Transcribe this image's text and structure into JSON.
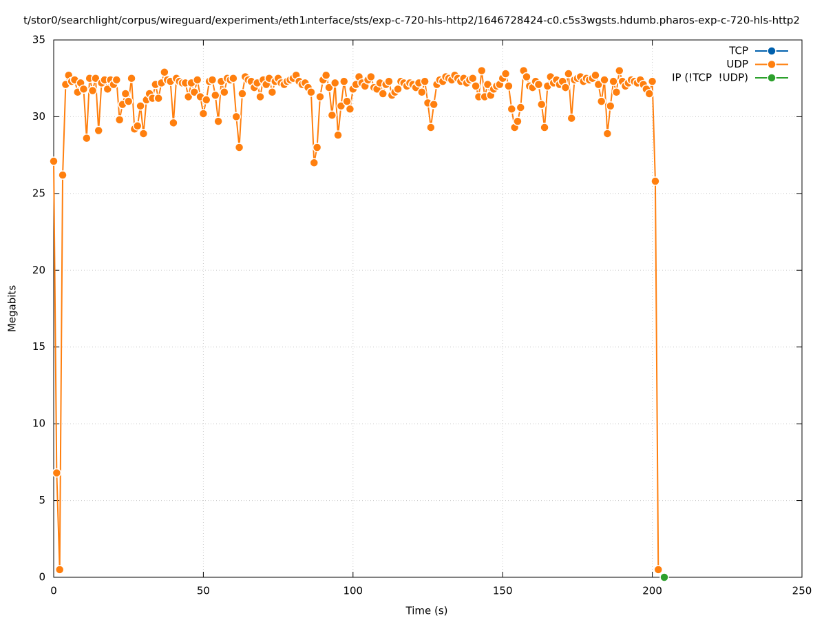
{
  "chart_data": {
    "type": "line",
    "title": "t/stor0/searchlight/corpus/wireguard/experiment₃/eth1ᵢnterface/sts/exp-c-720-hls-http2/1646728424-c0.c5s3wgsts.hdumb.pharos-exp-c-720-hls-http2",
    "x_label": "Time (s)",
    "y_label": "Megabits",
    "xlim": [
      0,
      250
    ],
    "xticks": [
      0,
      50,
      100,
      150,
      200,
      250
    ],
    "ylim": [
      0,
      35
    ],
    "yticks": [
      0,
      5,
      10,
      15,
      20,
      25,
      30,
      35
    ],
    "grid": true,
    "legend": "top-right",
    "x": [
      0,
      1,
      2,
      3,
      4,
      5,
      6,
      7,
      8,
      9,
      10,
      11,
      12,
      13,
      14,
      15,
      16,
      17,
      18,
      19,
      20,
      21,
      22,
      23,
      24,
      25,
      26,
      27,
      28,
      29,
      30,
      31,
      32,
      33,
      34,
      35,
      36,
      37,
      38,
      39,
      40,
      41,
      42,
      43,
      44,
      45,
      46,
      47,
      48,
      49,
      50,
      51,
      52,
      53,
      54,
      55,
      56,
      57,
      58,
      59,
      60,
      61,
      62,
      63,
      64,
      65,
      66,
      67,
      68,
      69,
      70,
      71,
      72,
      73,
      74,
      75,
      76,
      77,
      78,
      79,
      80,
      81,
      82,
      83,
      84,
      85,
      86,
      87,
      88,
      89,
      90,
      91,
      92,
      93,
      94,
      95,
      96,
      97,
      98,
      99,
      100,
      101,
      102,
      103,
      104,
      105,
      106,
      107,
      108,
      109,
      110,
      111,
      112,
      113,
      114,
      115,
      116,
      117,
      118,
      119,
      120,
      121,
      122,
      123,
      124,
      125,
      126,
      127,
      128,
      129,
      130,
      131,
      132,
      133,
      134,
      135,
      136,
      137,
      138,
      139,
      140,
      141,
      142,
      143,
      144,
      145,
      146,
      147,
      148,
      149,
      150,
      151,
      152,
      153,
      154,
      155,
      156,
      157,
      158,
      159,
      160,
      161,
      162,
      163,
      164,
      165,
      166,
      167,
      168,
      169,
      170,
      171,
      172,
      173,
      174,
      175,
      176,
      177,
      178,
      179,
      180,
      181,
      182,
      183,
      184,
      185,
      186,
      187,
      188,
      189,
      190,
      191,
      192,
      193,
      194,
      195,
      196,
      197,
      198,
      199,
      200,
      201,
      202,
      203,
      204
    ],
    "series": [
      {
        "name": "TCP",
        "color": "#0060ad",
        "values": [
          null,
          null,
          null,
          null,
          null,
          null,
          null,
          null,
          null,
          null,
          null,
          null,
          null,
          null,
          null,
          null,
          null,
          null,
          null,
          null,
          null,
          null,
          null,
          null,
          null,
          null,
          null,
          null,
          null,
          null,
          null,
          null,
          null,
          null,
          null,
          null,
          null,
          null,
          null,
          null,
          null,
          null,
          null,
          null,
          null,
          null,
          null,
          null,
          null,
          null,
          null,
          null,
          null,
          null,
          null,
          null,
          null,
          null,
          null,
          null,
          null,
          null,
          null,
          null,
          null,
          null,
          null,
          null,
          null,
          null,
          null,
          null,
          null,
          null,
          null,
          null,
          null,
          null,
          null,
          null,
          null,
          null,
          null,
          null,
          null,
          null,
          null,
          null,
          null,
          null,
          null,
          null,
          null,
          null,
          null,
          null,
          null,
          null,
          null,
          null,
          null,
          null,
          null,
          null,
          null,
          null,
          null,
          null,
          null,
          null,
          null,
          null,
          null,
          null,
          null,
          null,
          null,
          null,
          null,
          null,
          null,
          null,
          null,
          null,
          null,
          null,
          null,
          null,
          null,
          null,
          null,
          null,
          null,
          null,
          null,
          null,
          null,
          null,
          null,
          null,
          null,
          null,
          null,
          null,
          null,
          null,
          null,
          null,
          null,
          null,
          null,
          null,
          null,
          null,
          null,
          null,
          null,
          null,
          null,
          null,
          null,
          null,
          null,
          null,
          null,
          null,
          null,
          null,
          null,
          null,
          null,
          null,
          null,
          null,
          null,
          null,
          null,
          null,
          null,
          null,
          null,
          null,
          null,
          null,
          null,
          null,
          null,
          null,
          null,
          null,
          null,
          null,
          null,
          null,
          null,
          null,
          null,
          null,
          null,
          null,
          null,
          null,
          null,
          null,
          null
        ]
      },
      {
        "name": "UDP",
        "color": "#ff7f0e",
        "values": [
          27.1,
          6.8,
          0.5,
          26.2,
          32.1,
          32.7,
          32.3,
          32.4,
          31.6,
          32.2,
          31.8,
          28.6,
          32.5,
          31.7,
          32.5,
          29.1,
          32.2,
          32.4,
          31.8,
          32.4,
          32.1,
          32.4,
          29.8,
          30.8,
          31.5,
          31.0,
          32.5,
          29.2,
          29.4,
          30.7,
          28.9,
          31.1,
          31.5,
          31.2,
          32.1,
          31.2,
          32.2,
          32.9,
          32.4,
          32.3,
          29.6,
          32.5,
          32.3,
          32.2,
          32.2,
          31.3,
          32.2,
          31.6,
          32.4,
          31.3,
          30.2,
          31.1,
          32.3,
          32.4,
          31.4,
          29.7,
          32.3,
          31.6,
          32.5,
          32.4,
          32.5,
          30.0,
          28.0,
          31.5,
          32.6,
          32.4,
          32.3,
          31.9,
          32.2,
          31.3,
          32.4,
          32.1,
          32.5,
          31.6,
          32.3,
          32.5,
          32.2,
          32.1,
          32.3,
          32.4,
          32.5,
          32.7,
          32.3,
          32.1,
          32.2,
          31.9,
          31.6,
          27.0,
          28.0,
          31.3,
          32.4,
          32.7,
          31.9,
          30.1,
          32.2,
          28.8,
          30.7,
          32.3,
          31.0,
          30.5,
          31.8,
          32.1,
          32.6,
          32.2,
          32.0,
          32.4,
          32.6,
          31.9,
          31.8,
          32.2,
          31.5,
          32.1,
          32.3,
          31.4,
          31.6,
          31.8,
          32.3,
          32.2,
          32.0,
          32.2,
          32.1,
          31.9,
          32.2,
          31.6,
          32.3,
          30.9,
          29.3,
          30.8,
          32.1,
          32.4,
          32.3,
          32.6,
          32.5,
          32.4,
          32.7,
          32.5,
          32.3,
          32.5,
          32.2,
          32.4,
          32.5,
          32.0,
          31.3,
          33.0,
          31.3,
          32.1,
          31.4,
          31.8,
          32.0,
          32.1,
          32.5,
          32.8,
          32.0,
          30.5,
          29.3,
          29.7,
          30.6,
          33.0,
          32.6,
          32.0,
          31.9,
          32.3,
          32.1,
          30.8,
          29.3,
          32.0,
          32.6,
          32.2,
          32.4,
          32.1,
          32.3,
          31.9,
          32.8,
          29.9,
          32.4,
          32.5,
          32.6,
          32.3,
          32.5,
          32.4,
          32.5,
          32.7,
          32.1,
          31.0,
          32.4,
          28.9,
          30.7,
          32.3,
          31.6,
          33.0,
          32.3,
          32.0,
          32.2,
          32.4,
          32.3,
          32.2,
          32.4,
          32.1,
          31.8,
          31.5,
          32.3,
          25.8,
          0.5,
          null,
          null
        ]
      },
      {
        "name": "IP (!TCP  !UDP)",
        "color": "#2ca02c",
        "values": [
          null,
          null,
          null,
          null,
          null,
          null,
          null,
          null,
          null,
          null,
          null,
          null,
          null,
          null,
          null,
          null,
          null,
          null,
          null,
          null,
          null,
          null,
          null,
          null,
          null,
          null,
          null,
          null,
          null,
          null,
          null,
          null,
          null,
          null,
          null,
          null,
          null,
          null,
          null,
          null,
          null,
          null,
          null,
          null,
          null,
          null,
          null,
          null,
          null,
          null,
          null,
          null,
          null,
          null,
          null,
          null,
          null,
          null,
          null,
          null,
          null,
          null,
          null,
          null,
          null,
          null,
          null,
          null,
          null,
          null,
          null,
          null,
          null,
          null,
          null,
          null,
          null,
          null,
          null,
          null,
          null,
          null,
          null,
          null,
          null,
          null,
          null,
          null,
          null,
          null,
          null,
          null,
          null,
          null,
          null,
          null,
          null,
          null,
          null,
          null,
          null,
          null,
          null,
          null,
          null,
          null,
          null,
          null,
          null,
          null,
          null,
          null,
          null,
          null,
          null,
          null,
          null,
          null,
          null,
          null,
          null,
          null,
          null,
          null,
          null,
          null,
          null,
          null,
          null,
          null,
          null,
          null,
          null,
          null,
          null,
          null,
          null,
          null,
          null,
          null,
          null,
          null,
          null,
          null,
          null,
          null,
          null,
          null,
          null,
          null,
          null,
          null,
          null,
          null,
          null,
          null,
          null,
          null,
          null,
          null,
          null,
          null,
          null,
          null,
          null,
          null,
          null,
          null,
          null,
          null,
          null,
          null,
          null,
          null,
          null,
          null,
          null,
          null,
          null,
          null,
          null,
          null,
          null,
          null,
          null,
          null,
          null,
          null,
          null,
          null,
          null,
          null,
          null,
          null,
          null,
          null,
          null,
          null,
          null,
          null,
          null,
          null,
          null,
          null,
          0
        ]
      }
    ]
  }
}
